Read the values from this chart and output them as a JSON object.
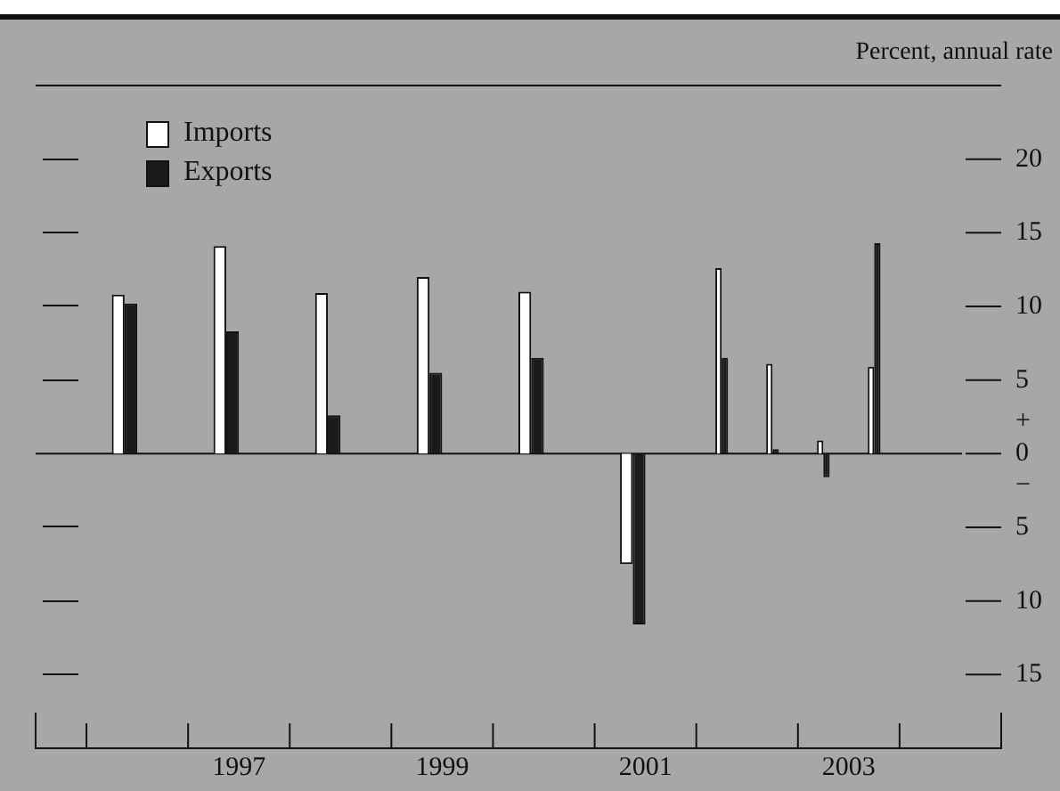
{
  "chart_data": {
    "type": "bar",
    "ylabel": "Percent, annual rate",
    "x": [
      1996.5,
      1997.5,
      1998.5,
      1999.5,
      2000.5,
      2001.5,
      2002.25,
      2002.75,
      2003.25,
      2003.75
    ],
    "series": [
      {
        "name": "Imports",
        "color": "#ffffff",
        "values": [
          10.8,
          14.1,
          10.9,
          12.0,
          11.0,
          -7.5,
          12.6,
          6.1,
          0.9,
          5.9
        ]
      },
      {
        "name": "Exports",
        "color": "#1a1a1a",
        "values": [
          10.2,
          8.3,
          2.6,
          5.5,
          6.5,
          -11.6,
          6.5,
          0.3,
          -1.6,
          14.3
        ]
      }
    ],
    "xlim": [
      1995.5,
      2005
    ],
    "xticks": [
      {
        "value": 1996,
        "label": null
      },
      {
        "value": 1997,
        "label": null
      },
      {
        "value": 1998,
        "label": null
      },
      {
        "value": 1999,
        "label": null
      },
      {
        "value": 2000,
        "label": null
      },
      {
        "value": 2001,
        "label": null
      },
      {
        "value": 2002,
        "label": null
      },
      {
        "value": 2003,
        "label": null
      },
      {
        "value": 2004,
        "label": null
      },
      {
        "value": 1997.5,
        "label": "1997"
      },
      {
        "value": 1999.5,
        "label": "1999"
      },
      {
        "value": 2001.5,
        "label": "2001"
      },
      {
        "value": 2003.5,
        "label": "2003"
      }
    ],
    "ylim": [
      -20,
      25
    ],
    "yticks": [
      20,
      15,
      10,
      5,
      {
        "value": 0,
        "label": "+\n0\n−"
      },
      {
        "value": -5,
        "label": "5"
      },
      {
        "value": -10,
        "label": "10"
      },
      {
        "value": -15,
        "label": "15"
      }
    ],
    "ref_lines": [
      {
        "axis": "y",
        "value": 0
      }
    ],
    "legend": "top left",
    "grid": false
  }
}
